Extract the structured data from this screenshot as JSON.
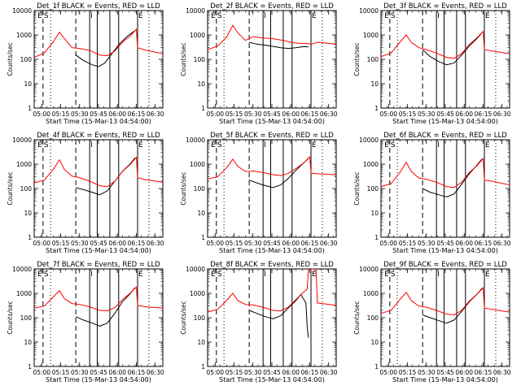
{
  "figure": {
    "x_tick_labels": [
      "05:00",
      "05:15",
      "05:30",
      "05:45",
      "06:00",
      "06:15",
      "06:30"
    ],
    "y_tick_labels": [
      "1",
      "10",
      "100",
      "1000",
      "10000"
    ],
    "xlabel": "Start Time (15-Mar-13 04:54:00)",
    "ylabel": "Counts/sec",
    "colors": {
      "events": "#000000",
      "lld": "#ff0000",
      "axes": "#000000"
    }
  },
  "chart_data": [
    {
      "type": "line",
      "title": "Det_1f BLACK = Events, RED = LLD",
      "xlabel": "Start Time (15-Mar-13 04:54:00)",
      "ylabel": "Counts/sec",
      "y_scale": "log",
      "ylim": [
        1,
        10000
      ],
      "xlim": [
        "04:54",
        "06:36"
      ],
      "markers": [
        {
          "label": "E",
          "time": "04:56"
        },
        {
          "label": "S",
          "time": "05:01"
        },
        {
          "label": "I",
          "time": "05:38"
        },
        {
          "label": "E",
          "time": "06:16"
        }
      ],
      "dashed_lines": [
        "05:01",
        "05:27"
      ],
      "dotted_lines": [
        "05:07",
        "06:25"
      ],
      "solid_lines": [
        "05:38",
        "05:44",
        "05:54",
        "06:01",
        "06:16"
      ],
      "series": [
        {
          "name": "Events",
          "x": [
            "05:27",
            "05:33",
            "05:40",
            "05:45",
            "05:50",
            "05:56",
            "06:02",
            "06:08",
            "06:14"
          ],
          "y": [
            150,
            90,
            60,
            50,
            70,
            180,
            450,
            900,
            1500
          ]
        },
        {
          "name": "LLD",
          "x": [
            "04:54",
            "05:02",
            "05:09",
            "05:14",
            "05:18",
            "05:24",
            "05:30",
            "05:38",
            "05:46",
            "05:52",
            "05:58",
            "06:04",
            "06:10",
            "06:15",
            "06:16",
            "06:22",
            "06:36"
          ],
          "y": [
            120,
            180,
            500,
            1300,
            700,
            300,
            280,
            230,
            150,
            140,
            220,
            500,
            900,
            1700,
            300,
            240,
            170
          ]
        }
      ]
    },
    {
      "type": "line",
      "title": "Det_2f BLACK = Events, RED = LLD",
      "xlabel": "Start Time (15-Mar-13 04:54:00)",
      "ylabel": "Counts/sec",
      "y_scale": "log",
      "ylim": [
        1,
        10000
      ],
      "xlim": [
        "04:54",
        "06:36"
      ],
      "markers": [
        {
          "label": "E",
          "time": "04:56"
        },
        {
          "label": "S",
          "time": "05:01"
        },
        {
          "label": "I",
          "time": "05:38"
        },
        {
          "label": "E",
          "time": "06:16"
        }
      ],
      "dashed_lines": [
        "05:01",
        "05:27"
      ],
      "dotted_lines": [
        "05:07",
        "06:25"
      ],
      "solid_lines": [
        "05:38",
        "05:44",
        "05:54",
        "06:01",
        "06:16"
      ],
      "series": [
        {
          "name": "Events",
          "x": [
            "05:27",
            "05:33",
            "05:40",
            "05:46",
            "05:52",
            "05:58",
            "06:04",
            "06:10",
            "06:14"
          ],
          "y": [
            500,
            420,
            380,
            340,
            300,
            280,
            300,
            330,
            320
          ]
        },
        {
          "name": "LLD",
          "x": [
            "04:54",
            "05:02",
            "05:09",
            "05:14",
            "05:18",
            "05:24",
            "05:30",
            "05:38",
            "05:46",
            "05:54",
            "06:00",
            "06:06",
            "06:12",
            "06:16",
            "06:22",
            "06:36"
          ],
          "y": [
            250,
            350,
            800,
            2500,
            1200,
            600,
            850,
            750,
            700,
            600,
            500,
            450,
            450,
            420,
            500,
            420
          ]
        }
      ]
    },
    {
      "type": "line",
      "title": "Det_3f BLACK = Events, RED = LLD",
      "xlabel": "Start Time (15-Mar-13 04:54:00)",
      "ylabel": "Counts/sec",
      "y_scale": "log",
      "ylim": [
        1,
        10000
      ],
      "xlim": [
        "04:54",
        "06:36"
      ],
      "markers": [
        {
          "label": "E",
          "time": "04:56"
        },
        {
          "label": "S",
          "time": "05:01"
        },
        {
          "label": "I",
          "time": "05:38"
        },
        {
          "label": "E",
          "time": "06:16"
        }
      ],
      "dashed_lines": [
        "05:01",
        "05:27"
      ],
      "dotted_lines": [
        "05:07",
        "06:25"
      ],
      "solid_lines": [
        "05:38",
        "05:44",
        "05:54",
        "06:01",
        "06:16"
      ],
      "series": [
        {
          "name": "Events",
          "x": [
            "05:27",
            "05:33",
            "05:40",
            "05:46",
            "05:52",
            "05:58",
            "06:04",
            "06:10",
            "06:14"
          ],
          "y": [
            250,
            130,
            80,
            60,
            70,
            150,
            350,
            700,
            1200
          ]
        },
        {
          "name": "LLD",
          "x": [
            "04:54",
            "05:02",
            "05:09",
            "05:14",
            "05:18",
            "05:24",
            "05:30",
            "05:38",
            "05:46",
            "05:52",
            "05:58",
            "06:04",
            "06:10",
            "06:15",
            "06:16",
            "06:22",
            "06:36"
          ],
          "y": [
            130,
            180,
            500,
            1000,
            500,
            300,
            250,
            180,
            120,
            110,
            170,
            400,
            750,
            1400,
            250,
            220,
            170
          ]
        }
      ]
    },
    {
      "type": "line",
      "title": "Det_4f BLACK = Events, RED = LLD",
      "xlabel": "Start Time (15-Mar-13 04:54:00)",
      "ylabel": "Counts/sec",
      "y_scale": "log",
      "ylim": [
        1,
        10000
      ],
      "xlim": [
        "04:54",
        "06:36"
      ],
      "markers": [
        {
          "label": "E",
          "time": "04:56"
        },
        {
          "label": "S",
          "time": "05:01"
        },
        {
          "label": "I",
          "time": "05:38"
        },
        {
          "label": "E",
          "time": "06:16"
        }
      ],
      "dashed_lines": [
        "05:01",
        "05:27"
      ],
      "dotted_lines": [
        "05:07",
        "06:25"
      ],
      "solid_lines": [
        "05:38",
        "05:44",
        "05:54",
        "06:01",
        "06:16"
      ],
      "series": [
        {
          "name": "Events",
          "x": [
            "05:27",
            "05:33",
            "05:40",
            "05:46",
            "05:52",
            "05:58",
            "06:04",
            "06:10",
            "06:14"
          ],
          "y": [
            110,
            90,
            70,
            55,
            80,
            200,
            500,
            1000,
            1800
          ]
        },
        {
          "name": "LLD",
          "x": [
            "04:54",
            "05:02",
            "05:09",
            "05:14",
            "05:18",
            "05:24",
            "05:30",
            "05:38",
            "05:46",
            "05:52",
            "05:58",
            "06:04",
            "06:10",
            "06:15",
            "06:16",
            "06:22",
            "06:36"
          ],
          "y": [
            170,
            220,
            600,
            1500,
            600,
            320,
            280,
            200,
            130,
            120,
            200,
            500,
            950,
            1900,
            280,
            230,
            180
          ]
        }
      ]
    },
    {
      "type": "line",
      "title": "Det_5f BLACK = Events, RED = LLD",
      "xlabel": "Start Time (15-Mar-13 04:54:00)",
      "ylabel": "Counts/sec",
      "y_scale": "log",
      "ylim": [
        1,
        10000
      ],
      "xlim": [
        "04:54",
        "06:36"
      ],
      "markers": [
        {
          "label": "E",
          "time": "04:56"
        },
        {
          "label": "S",
          "time": "05:01"
        },
        {
          "label": "I",
          "time": "05:38"
        },
        {
          "label": "E",
          "time": "06:16"
        }
      ],
      "dashed_lines": [
        "05:01",
        "05:27"
      ],
      "dotted_lines": [
        "05:07",
        "06:25"
      ],
      "solid_lines": [
        "05:38",
        "05:44",
        "05:54",
        "06:01",
        "06:16"
      ],
      "series": [
        {
          "name": "Events",
          "x": [
            "05:27",
            "05:33",
            "05:40",
            "05:46",
            "05:52",
            "05:58",
            "06:04",
            "06:10",
            "06:14"
          ],
          "y": [
            220,
            170,
            130,
            110,
            140,
            260,
            550,
            1100,
            1700
          ]
        },
        {
          "name": "LLD",
          "x": [
            "04:54",
            "05:02",
            "05:09",
            "05:14",
            "05:18",
            "05:24",
            "05:30",
            "05:38",
            "05:46",
            "05:52",
            "05:58",
            "06:04",
            "06:10",
            "06:15",
            "06:16",
            "06:22",
            "06:36"
          ],
          "y": [
            250,
            300,
            700,
            1600,
            800,
            500,
            520,
            450,
            370,
            340,
            420,
            650,
            1100,
            2000,
            420,
            400,
            360
          ]
        }
      ]
    },
    {
      "type": "line",
      "title": "Det_6f BLACK = Events, RED = LLD",
      "xlabel": "Start Time (15-Mar-13 04:54:00)",
      "ylabel": "Counts/sec",
      "y_scale": "log",
      "ylim": [
        1,
        10000
      ],
      "xlim": [
        "04:54",
        "06:36"
      ],
      "markers": [
        {
          "label": "E",
          "time": "04:56"
        },
        {
          "label": "S",
          "time": "05:01"
        },
        {
          "label": "I",
          "time": "05:38"
        },
        {
          "label": "E",
          "time": "06:16"
        }
      ],
      "dashed_lines": [
        "05:01",
        "05:27"
      ],
      "dotted_lines": [
        "05:07",
        "06:25"
      ],
      "solid_lines": [
        "05:38",
        "05:44",
        "05:54",
        "06:01",
        "06:16"
      ],
      "series": [
        {
          "name": "Events",
          "x": [
            "05:27",
            "05:33",
            "05:40",
            "05:46",
            "05:52",
            "05:58",
            "06:04",
            "06:10",
            "06:14"
          ],
          "y": [
            100,
            70,
            55,
            45,
            60,
            150,
            400,
            900,
            1600
          ]
        },
        {
          "name": "LLD",
          "x": [
            "04:54",
            "05:02",
            "05:09",
            "05:14",
            "05:18",
            "05:24",
            "05:30",
            "05:38",
            "05:46",
            "05:52",
            "05:58",
            "06:04",
            "06:10",
            "06:15",
            "06:16",
            "06:22",
            "06:36"
          ],
          "y": [
            120,
            160,
            450,
            1200,
            500,
            270,
            240,
            180,
            120,
            110,
            180,
            450,
            850,
            1700,
            220,
            200,
            140
          ]
        }
      ]
    },
    {
      "type": "line",
      "title": "Det_7f BLACK = Events, RED = LLD",
      "xlabel": "Start Time (15-Mar-13 04:54:00)",
      "ylabel": "Counts/sec",
      "y_scale": "log",
      "ylim": [
        1,
        10000
      ],
      "xlim": [
        "04:54",
        "06:36"
      ],
      "markers": [
        {
          "label": "E",
          "time": "04:56"
        },
        {
          "label": "S",
          "time": "05:01"
        },
        {
          "label": "I",
          "time": "05:38"
        },
        {
          "label": "E",
          "time": "06:16"
        }
      ],
      "dashed_lines": [
        "05:01",
        "05:27"
      ],
      "dotted_lines": [
        "05:07",
        "06:25"
      ],
      "solid_lines": [
        "05:38",
        "05:44",
        "05:54",
        "06:01",
        "06:16"
      ],
      "series": [
        {
          "name": "Events",
          "x": [
            "05:27",
            "05:33",
            "05:40",
            "05:46",
            "05:52",
            "05:58",
            "06:04",
            "06:10",
            "06:14"
          ],
          "y": [
            110,
            80,
            60,
            45,
            60,
            150,
            450,
            950,
            1700
          ]
        },
        {
          "name": "LLD",
          "x": [
            "04:54",
            "05:02",
            "05:09",
            "05:14",
            "05:18",
            "05:24",
            "05:30",
            "05:38",
            "05:46",
            "05:52",
            "05:58",
            "06:04",
            "06:10",
            "06:15",
            "06:16",
            "06:22",
            "06:36"
          ],
          "y": [
            250,
            300,
            700,
            1300,
            600,
            380,
            350,
            280,
            200,
            190,
            260,
            550,
            1000,
            1800,
            320,
            280,
            250
          ]
        }
      ]
    },
    {
      "type": "line",
      "title": "Det_8f BLACK = Events, RED = LLD",
      "xlabel": "Start Time (15-Mar-13 04:54:00)",
      "ylabel": "Counts/sec",
      "y_scale": "log",
      "ylim": [
        1,
        10000
      ],
      "xlim": [
        "04:54",
        "06:36"
      ],
      "markers": [
        {
          "label": "E",
          "time": "04:56"
        },
        {
          "label": "S",
          "time": "05:01"
        },
        {
          "label": "I",
          "time": "05:38"
        },
        {
          "label": "E",
          "time": "06:16"
        }
      ],
      "dashed_lines": [
        "05:01",
        "05:27"
      ],
      "dotted_lines": [
        "05:07",
        "06:25"
      ],
      "solid_lines": [
        "05:38",
        "05:44",
        "05:54",
        "06:01",
        "06:16"
      ],
      "series": [
        {
          "name": "Events",
          "x": [
            "05:27",
            "05:33",
            "05:40",
            "05:46",
            "05:52",
            "05:58",
            "06:04",
            "06:08",
            "06:12",
            "06:13",
            "06:14"
          ],
          "y": [
            200,
            150,
            110,
            90,
            120,
            250,
            500,
            900,
            400,
            40,
            15
          ]
        },
        {
          "name": "LLD",
          "x": [
            "04:54",
            "05:02",
            "05:09",
            "05:14",
            "05:18",
            "05:24",
            "05:30",
            "05:38",
            "05:46",
            "05:52",
            "05:58",
            "06:04",
            "06:10",
            "06:13",
            "06:14",
            "06:15",
            "06:16",
            "06:17",
            "06:19",
            "06:20",
            "06:21",
            "06:36"
          ],
          "y": [
            170,
            220,
            500,
            1000,
            500,
            350,
            330,
            270,
            200,
            190,
            270,
            550,
            1100,
            1500,
            10000,
            10000,
            10000,
            10000,
            10000,
            10000,
            400,
            320
          ]
        }
      ]
    },
    {
      "type": "line",
      "title": "Det_9f BLACK = Events, RED = LLD",
      "xlabel": "Start Time (15-Mar-13 04:54:00)",
      "ylabel": "Counts/sec",
      "y_scale": "log",
      "ylim": [
        1,
        10000
      ],
      "xlim": [
        "04:54",
        "06:36"
      ],
      "markers": [
        {
          "label": "E",
          "time": "04:56"
        },
        {
          "label": "S",
          "time": "05:01"
        },
        {
          "label": "I",
          "time": "05:38"
        },
        {
          "label": "E",
          "time": "06:16"
        }
      ],
      "dashed_lines": [
        "05:01",
        "05:27"
      ],
      "dotted_lines": [
        "05:07",
        "06:25"
      ],
      "solid_lines": [
        "05:38",
        "05:44",
        "05:54",
        "06:01",
        "06:16"
      ],
      "series": [
        {
          "name": "Events",
          "x": [
            "05:27",
            "05:33",
            "05:40",
            "05:46",
            "05:52",
            "05:58",
            "06:04",
            "06:10",
            "06:14"
          ],
          "y": [
            130,
            100,
            75,
            60,
            80,
            180,
            450,
            900,
            1600
          ]
        },
        {
          "name": "LLD",
          "x": [
            "04:54",
            "05:02",
            "05:09",
            "05:14",
            "05:18",
            "05:24",
            "05:30",
            "05:38",
            "05:46",
            "05:52",
            "05:58",
            "06:04",
            "06:10",
            "06:15",
            "06:16",
            "06:22",
            "06:36"
          ],
          "y": [
            150,
            200,
            550,
            1100,
            500,
            300,
            270,
            200,
            140,
            130,
            200,
            480,
            900,
            1700,
            250,
            220,
            170
          ]
        }
      ]
    }
  ]
}
